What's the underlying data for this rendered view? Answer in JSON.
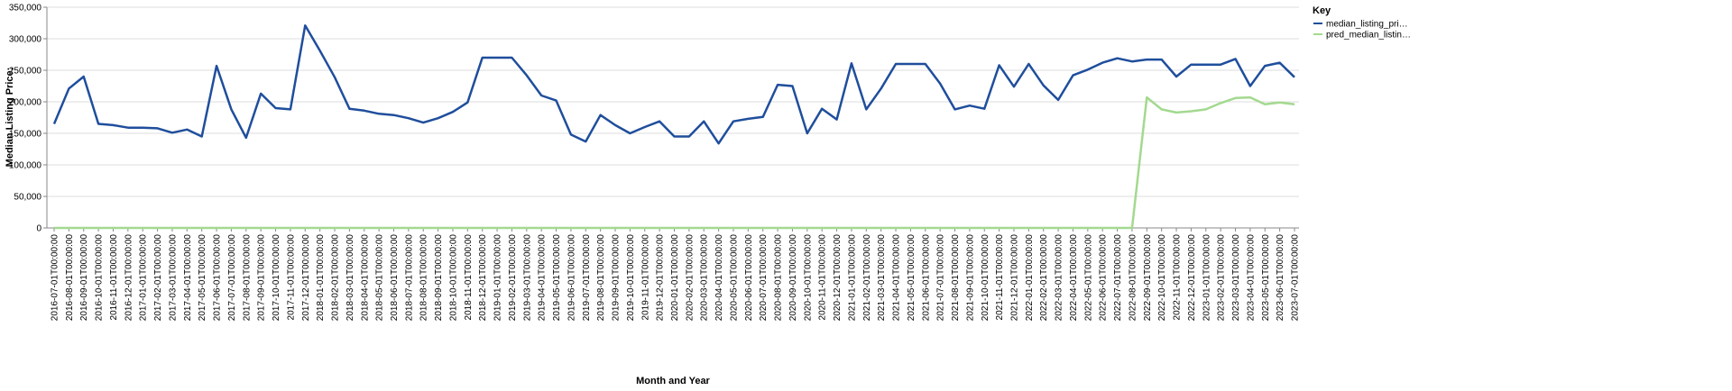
{
  "chart_data": {
    "type": "line",
    "y_label": "Median Listing Price:",
    "x_label": "Month and Year",
    "legend_title": "Key",
    "legend_position": "right",
    "grid": true,
    "categories": [
      "2016-07-01T00:00:00",
      "2016-08-01T00:00:00",
      "2016-09-01T00:00:00",
      "2016-10-01T00:00:00",
      "2016-11-01T00:00:00",
      "2016-12-01T00:00:00",
      "2017-01-01T00:00:00",
      "2017-02-01T00:00:00",
      "2017-03-01T00:00:00",
      "2017-04-01T00:00:00",
      "2017-05-01T00:00:00",
      "2017-06-01T00:00:00",
      "2017-07-01T00:00:00",
      "2017-08-01T00:00:00",
      "2017-09-01T00:00:00",
      "2017-10-01T00:00:00",
      "2017-11-01T00:00:00",
      "2017-12-01T00:00:00",
      "2018-01-01T00:00:00",
      "2018-02-01T00:00:00",
      "2018-03-01T00:00:00",
      "2018-04-01T00:00:00",
      "2018-05-01T00:00:00",
      "2018-06-01T00:00:00",
      "2018-07-01T00:00:00",
      "2018-08-01T00:00:00",
      "2018-09-01T00:00:00",
      "2018-10-01T00:00:00",
      "2018-11-01T00:00:00",
      "2018-12-01T00:00:00",
      "2019-01-01T00:00:00",
      "2019-02-01T00:00:00",
      "2019-03-01T00:00:00",
      "2019-04-01T00:00:00",
      "2019-05-01T00:00:00",
      "2019-06-01T00:00:00",
      "2019-07-01T00:00:00",
      "2019-08-01T00:00:00",
      "2019-09-01T00:00:00",
      "2019-10-01T00:00:00",
      "2019-11-01T00:00:00",
      "2019-12-01T00:00:00",
      "2020-01-01T00:00:00",
      "2020-02-01T00:00:00",
      "2020-03-01T00:00:00",
      "2020-04-01T00:00:00",
      "2020-05-01T00:00:00",
      "2020-06-01T00:00:00",
      "2020-07-01T00:00:00",
      "2020-08-01T00:00:00",
      "2020-09-01T00:00:00",
      "2020-10-01T00:00:00",
      "2020-11-01T00:00:00",
      "2020-12-01T00:00:00",
      "2021-01-01T00:00:00",
      "2021-02-01T00:00:00",
      "2021-03-01T00:00:00",
      "2021-04-01T00:00:00",
      "2021-05-01T00:00:00",
      "2021-06-01T00:00:00",
      "2021-07-01T00:00:00",
      "2021-08-01T00:00:00",
      "2021-09-01T00:00:00",
      "2021-10-01T00:00:00",
      "2021-11-01T00:00:00",
      "2021-12-01T00:00:00",
      "2022-01-01T00:00:00",
      "2022-02-01T00:00:00",
      "2022-03-01T00:00:00",
      "2022-04-01T00:00:00",
      "2022-05-01T00:00:00",
      "2022-06-01T00:00:00",
      "2022-07-01T00:00:00",
      "2022-08-01T00:00:00",
      "2022-09-01T00:00:00",
      "2022-10-01T00:00:00",
      "2022-11-01T00:00:00",
      "2022-12-01T00:00:00",
      "2023-01-01T00:00:00",
      "2023-02-01T00:00:00",
      "2023-03-01T00:00:00",
      "2023-04-01T00:00:00",
      "2023-05-01T00:00:00",
      "2023-06-01T00:00:00",
      "2023-07-01T00:00:00"
    ],
    "series": [
      {
        "name": "median_listing_pri…",
        "color": "#1f4e9c",
        "values": [
          165000,
          221000,
          240000,
          165000,
          163000,
          159000,
          159000,
          158000,
          151000,
          156000,
          145000,
          257000,
          188000,
          143000,
          213000,
          190000,
          188000,
          321000,
          281000,
          239000,
          189000,
          186000,
          181000,
          179000,
          174000,
          167000,
          174000,
          184000,
          199000,
          270000,
          270000,
          270000,
          242000,
          210000,
          202000,
          148000,
          137000,
          179000,
          163000,
          150000,
          160000,
          169000,
          145000,
          145000,
          169000,
          134000,
          169000,
          173000,
          176000,
          227000,
          225000,
          150000,
          189000,
          172000,
          261000,
          188000,
          221000,
          260000,
          260000,
          260000,
          229000,
          188000,
          194000,
          189000,
          258000,
          224000,
          260000,
          226000,
          203000,
          242000,
          251000,
          262000,
          269000,
          264000,
          267000,
          267000,
          240000,
          259000,
          259000,
          259000,
          268000,
          225000,
          257000,
          262000,
          239000
        ]
      },
      {
        "name": "pred_median_listin…",
        "color": "#a3d98f",
        "values": [
          0,
          0,
          0,
          0,
          0,
          0,
          0,
          0,
          0,
          0,
          0,
          0,
          0,
          0,
          0,
          0,
          0,
          0,
          0,
          0,
          0,
          0,
          0,
          0,
          0,
          0,
          0,
          0,
          0,
          0,
          0,
          0,
          0,
          0,
          0,
          0,
          0,
          0,
          0,
          0,
          0,
          0,
          0,
          0,
          0,
          0,
          0,
          0,
          0,
          0,
          0,
          0,
          0,
          0,
          0,
          0,
          0,
          0,
          0,
          0,
          0,
          0,
          0,
          0,
          0,
          0,
          0,
          0,
          0,
          0,
          0,
          0,
          0,
          0,
          207000,
          188000,
          183000,
          185000,
          188000,
          198000,
          206000,
          207000,
          196000,
          199000,
          196000
        ]
      }
    ],
    "ylim": [
      0,
      350000
    ],
    "yticks": [
      0,
      {
        "value": 50000,
        "label": "50,000"
      },
      {
        "value": 100000,
        "label": "100,000"
      },
      {
        "value": 150000,
        "label": "150,000"
      },
      {
        "value": 200000,
        "label": "200,000"
      },
      {
        "value": 250000,
        "label": "250,000"
      },
      {
        "value": 300000,
        "label": "300,000"
      },
      {
        "value": 350000,
        "label": "350,000"
      }
    ]
  }
}
